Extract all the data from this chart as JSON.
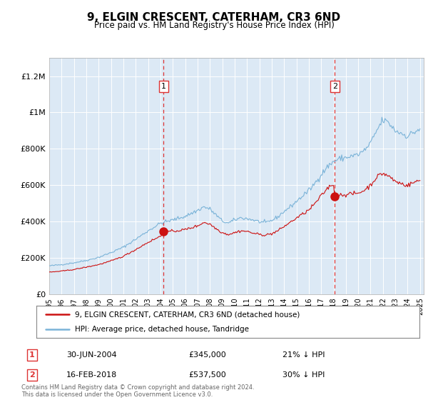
{
  "title": "9, ELGIN CRESCENT, CATERHAM, CR3 6ND",
  "subtitle": "Price paid vs. HM Land Registry's House Price Index (HPI)",
  "plot_bg_color": "#dce9f5",
  "legend_line1": "9, ELGIN CRESCENT, CATERHAM, CR3 6ND (detached house)",
  "legend_line2": "HPI: Average price, detached house, Tandridge",
  "annotation1_label": "1",
  "annotation1_date": "30-JUN-2004",
  "annotation1_price": "£345,000",
  "annotation1_pct": "21% ↓ HPI",
  "annotation2_label": "2",
  "annotation2_date": "16-FEB-2018",
  "annotation2_price": "£537,500",
  "annotation2_pct": "30% ↓ HPI",
  "footer": "Contains HM Land Registry data © Crown copyright and database right 2024.\nThis data is licensed under the Open Government Licence v3.0.",
  "hpi_color": "#7ab3d8",
  "price_color": "#cc1111",
  "dashed_color": "#dd3333",
  "sale_dot_color": "#cc1111",
  "ylim": [
    0,
    1300000
  ],
  "yticks": [
    0,
    200000,
    400000,
    600000,
    800000,
    1000000,
    1200000
  ],
  "ytick_labels": [
    "£0",
    "£200K",
    "£400K",
    "£600K",
    "£800K",
    "£1M",
    "£1.2M"
  ],
  "sale1_x": 2004.25,
  "sale1_y": 345000,
  "sale2_x": 2018.1,
  "sale2_y": 537500,
  "xlim_left": 1995.0,
  "xlim_right": 2025.3
}
